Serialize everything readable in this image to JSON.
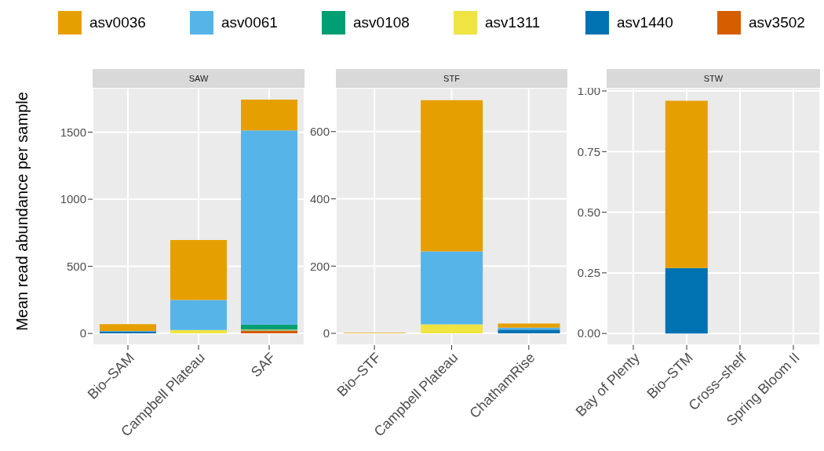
{
  "chart_data": [
    {
      "type": "bar",
      "title": "SAW",
      "ylabel": "Mean read abundance per sample",
      "categories": [
        "Bio–SAM",
        "Campbell Plateau",
        "SAF"
      ],
      "stacked": true,
      "grid": true,
      "legend": "top",
      "ylim": [
        -87,
        1830
      ],
      "yticks": [
        0,
        500,
        1000,
        1500
      ],
      "series": [
        {
          "name": "asv3502",
          "color": "#d55e00",
          "values": [
            0,
            0,
            20
          ]
        },
        {
          "name": "asv1440",
          "color": "#0072b2",
          "values": [
            15,
            0,
            3
          ]
        },
        {
          "name": "asv1311",
          "color": "#f0e442",
          "values": [
            0,
            25,
            5
          ]
        },
        {
          "name": "asv0108",
          "color": "#009e73",
          "values": [
            0,
            0,
            38
          ]
        },
        {
          "name": "asv0061",
          "color": "#56b4e9",
          "values": [
            3,
            224,
            1447
          ]
        },
        {
          "name": "asv0036",
          "color": "#e69f00",
          "values": [
            52,
            447,
            230
          ]
        }
      ]
    },
    {
      "type": "bar",
      "title": "STF",
      "categories": [
        "Bio–STF",
        "Campbell Plateau",
        "ChathamRise"
      ],
      "stacked": true,
      "grid": true,
      "ylim": [
        -35,
        730
      ],
      "yticks": [
        0,
        200,
        400,
        600
      ],
      "series": [
        {
          "color": "#d55e00",
          "values": [
            0,
            0,
            0
          ]
        },
        {
          "color": "#0072b2",
          "values": [
            0,
            0,
            11
          ]
        },
        {
          "color": "#f0e442",
          "values": [
            0,
            27,
            0
          ]
        },
        {
          "color": "#009e73",
          "values": [
            0,
            0,
            0
          ]
        },
        {
          "color": "#56b4e9",
          "values": [
            0,
            217,
            6
          ]
        },
        {
          "color": "#e69f00",
          "values": [
            2,
            449,
            12
          ]
        }
      ]
    },
    {
      "type": "bar",
      "title": "STW",
      "categories": [
        "Bay of Plenty",
        "Bio–STM",
        "Cross–shelf",
        "Spring Bloom II"
      ],
      "stacked": true,
      "grid": true,
      "ylim": [
        -0.048,
        1.013
      ],
      "yticks": [
        {
          "value": 0,
          "label": "0.00"
        },
        {
          "value": 0.25,
          "label": "0.25"
        },
        {
          "value": 0.5,
          "label": "0.50"
        },
        {
          "value": 0.75,
          "label": "0.75"
        },
        {
          "value": 1,
          "label": "1.00"
        }
      ],
      "series": [
        {
          "color": "#d55e00",
          "values": [
            0,
            0,
            0,
            0
          ]
        },
        {
          "color": "#0072b2",
          "values": [
            0,
            0.27,
            0,
            0
          ]
        },
        {
          "color": "#f0e442",
          "values": [
            0,
            0,
            0,
            0
          ]
        },
        {
          "color": "#009e73",
          "values": [
            0,
            0,
            0,
            0
          ]
        },
        {
          "color": "#56b4e9",
          "values": [
            0,
            0,
            0,
            0
          ]
        },
        {
          "color": "#e69f00",
          "values": [
            0,
            0.69,
            0,
            0
          ]
        }
      ]
    }
  ]
}
